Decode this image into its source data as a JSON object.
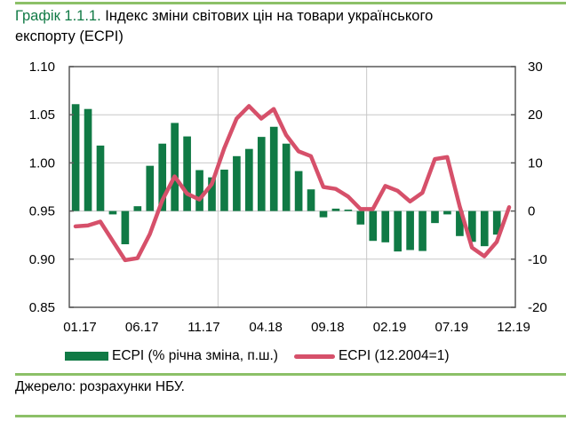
{
  "header": {
    "title_lead": "Графік 1.1.1.",
    "title_rest": " Індекс  зміни світових цін на товари українського",
    "title_line2": "експорту (ECPI)"
  },
  "colors": {
    "bar": "#107a45",
    "line": "#d6506a",
    "rule": "#8cc068",
    "title_accent": "#107a45",
    "grid": "#c8c8c8",
    "axis": "#595959"
  },
  "legend": {
    "bar_label": "ECPI (% річна зміна, п.ш.)",
    "line_label": "ECPI (12.2004=1)"
  },
  "footer": {
    "source": "Джерело: розрахунки НБУ."
  },
  "chart_data": {
    "type": "bar+line",
    "title": "Графік 1.1.1. Індекс зміни світових цін на товари українського експорту (ECPI)",
    "xlabel": "",
    "x_tick_labels": [
      "01.17",
      "06.17",
      "11.17",
      "04.18",
      "09.18",
      "02.19",
      "07.19",
      "12.19"
    ],
    "categories": [
      "01.17",
      "02.17",
      "03.17",
      "04.17",
      "05.17",
      "06.17",
      "07.17",
      "08.17",
      "09.17",
      "10.17",
      "11.17",
      "12.17",
      "01.18",
      "02.18",
      "03.18",
      "04.18",
      "05.18",
      "06.18",
      "07.18",
      "08.18",
      "09.18",
      "10.18",
      "11.18",
      "12.18",
      "01.19",
      "02.19",
      "03.19",
      "04.19",
      "05.19",
      "06.19",
      "07.19",
      "08.19",
      "09.19",
      "10.19",
      "11.19",
      "12.19"
    ],
    "left_axis": {
      "ylim": [
        0.85,
        1.1
      ],
      "ticks": [
        "1.10",
        "1.05",
        "1.00",
        "0.95",
        "0.90",
        "0.85"
      ]
    },
    "right_axis": {
      "ylim": [
        -20,
        30
      ],
      "ticks": [
        "30",
        "20",
        "10",
        "0",
        "-10",
        "-20"
      ]
    },
    "grid": "horizontal and vertical (every 12 months)",
    "legend_position": "bottom",
    "series": [
      {
        "name": "ECPI (% річна зміна, п.ш.)",
        "type": "bar",
        "axis": "right",
        "values": [
          22.2,
          21.2,
          13.6,
          -0.7,
          -6.9,
          1.0,
          9.4,
          14.0,
          18.3,
          15.5,
          8.5,
          7.0,
          8.6,
          11.4,
          12.9,
          15.4,
          17.5,
          14.0,
          8.3,
          4.5,
          -1.3,
          0.5,
          0.3,
          -2.8,
          -6.2,
          -6.5,
          -8.4,
          -8.1,
          -8.3,
          -2.5,
          -0.7,
          -5.2,
          -6.4,
          -7.3,
          -4.9,
          null
        ]
      },
      {
        "name": "ECPI (12.2004=1)",
        "type": "line",
        "axis": "left",
        "values": [
          0.934,
          0.935,
          0.939,
          0.919,
          0.899,
          0.901,
          0.926,
          0.961,
          0.986,
          0.968,
          0.962,
          0.978,
          1.015,
          1.046,
          1.059,
          1.046,
          1.056,
          1.029,
          1.012,
          1.007,
          0.975,
          0.973,
          0.965,
          0.952,
          0.952,
          0.976,
          0.971,
          0.96,
          0.969,
          1.004,
          1.006,
          0.955,
          0.912,
          0.903,
          0.918,
          0.954
        ]
      }
    ]
  }
}
